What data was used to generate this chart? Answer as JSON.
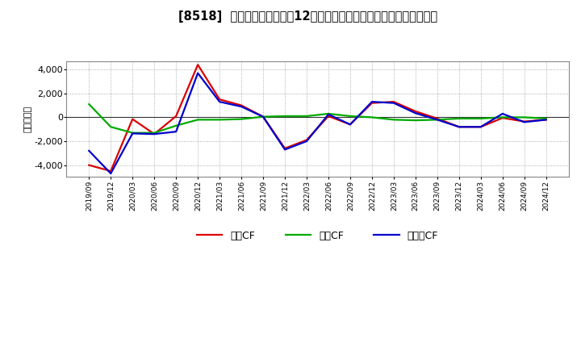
{
  "title": "[8518]  キャッシュフローの12か月移動合計の対前年同期増減額の推移",
  "ylabel": "（百万円）",
  "background_color": "#ffffff",
  "plot_bg_color": "#ffffff",
  "grid_color": "#999999",
  "x_labels": [
    "2019/09",
    "2019/12",
    "2020/03",
    "2020/06",
    "2020/09",
    "2020/12",
    "2021/03",
    "2021/06",
    "2021/09",
    "2021/12",
    "2022/03",
    "2022/06",
    "2022/09",
    "2022/12",
    "2023/03",
    "2023/06",
    "2023/09",
    "2023/12",
    "2024/03",
    "2024/06",
    "2024/09",
    "2024/12"
  ],
  "eigyo_cf": [
    -4000,
    -4500,
    -150,
    -1400,
    100,
    4400,
    1500,
    1000,
    50,
    -2600,
    -1900,
    100,
    -600,
    1200,
    1300,
    500,
    -100,
    -800,
    -800,
    -50,
    -350,
    -200
  ],
  "toshi_cf": [
    1100,
    -800,
    -1300,
    -1300,
    -700,
    -200,
    -200,
    -150,
    50,
    100,
    100,
    300,
    100,
    0,
    -200,
    -250,
    -200,
    -100,
    -100,
    0,
    0,
    -100
  ],
  "free_cf": [
    -2800,
    -4700,
    -1350,
    -1400,
    -1200,
    3700,
    1300,
    900,
    50,
    -2700,
    -2000,
    250,
    -600,
    1300,
    1200,
    350,
    -200,
    -800,
    -800,
    300,
    -400,
    -200
  ],
  "eigyo_color": "#dd0000",
  "toshi_color": "#00aa00",
  "free_color": "#0000cc",
  "ylim": [
    -5000,
    4700
  ],
  "yticks": [
    -4000,
    -2000,
    0,
    2000,
    4000
  ],
  "line_width": 1.6,
  "legend_labels": [
    "営業CF",
    "投資CF",
    "フリーCF"
  ]
}
